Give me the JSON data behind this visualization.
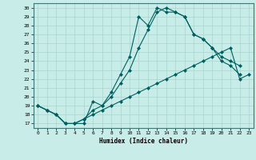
{
  "xlabel": "Humidex (Indice chaleur)",
  "bg_color": "#c8ece8",
  "grid_color": "#a8d4ce",
  "line_color": "#006060",
  "xlim": [
    -0.5,
    23.5
  ],
  "ylim": [
    16.5,
    30.5
  ],
  "yticks": [
    17,
    18,
    19,
    20,
    21,
    22,
    23,
    24,
    25,
    26,
    27,
    28,
    29,
    30
  ],
  "xticks": [
    0,
    1,
    2,
    3,
    4,
    5,
    6,
    7,
    8,
    9,
    10,
    11,
    12,
    13,
    14,
    15,
    16,
    17,
    18,
    19,
    20,
    21,
    22,
    23
  ],
  "curve1_x": [
    0,
    1,
    2,
    3,
    4,
    5,
    6,
    7,
    8,
    9,
    10,
    11,
    12,
    13,
    14,
    15,
    16,
    17,
    18,
    19,
    20,
    21,
    22
  ],
  "curve1_y": [
    19,
    18.5,
    18,
    17,
    17,
    17,
    19.5,
    19,
    20.5,
    22.5,
    24.5,
    29,
    28,
    30,
    29.5,
    29.5,
    29,
    27,
    26.5,
    25.5,
    24,
    23.5,
    22.5
  ],
  "curve2_x": [
    0,
    1,
    2,
    3,
    4,
    5,
    6,
    7,
    8,
    9,
    10,
    11,
    12,
    13,
    14,
    15,
    16,
    17,
    18,
    19,
    20,
    21,
    22
  ],
  "curve2_y": [
    19,
    18.5,
    18,
    17,
    17,
    17.5,
    18.5,
    19,
    20,
    21.5,
    23,
    25.5,
    27.5,
    29.5,
    30,
    29.5,
    29,
    27,
    26.5,
    25.5,
    24.5,
    24,
    23.5
  ],
  "curve3_x": [
    0,
    1,
    2,
    3,
    4,
    5,
    6,
    7,
    8,
    9,
    10,
    11,
    12,
    13,
    14,
    15,
    16,
    17,
    18,
    19,
    20,
    21,
    22,
    23
  ],
  "curve3_y": [
    19,
    18.5,
    18,
    17,
    17,
    17.5,
    18,
    18.5,
    19,
    19.5,
    20,
    20.5,
    21,
    21.5,
    22,
    22.5,
    23,
    23.5,
    24,
    24.5,
    25,
    25.5,
    22,
    22.5
  ]
}
